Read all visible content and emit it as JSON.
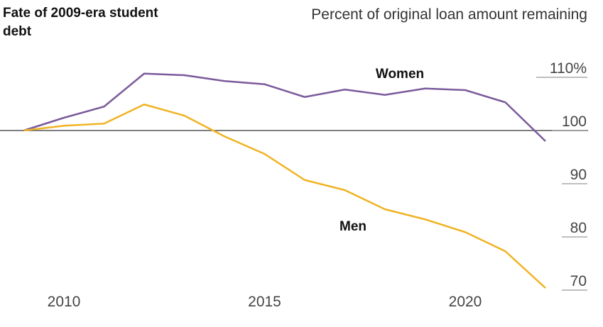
{
  "chart_data": {
    "type": "line",
    "title": "Fate of 2009-era student debt",
    "ylabel": "Percent of original loan amount remaining",
    "x": [
      2009,
      2010,
      2011,
      2012,
      2013,
      2014,
      2015,
      2016,
      2017,
      2018,
      2019,
      2020,
      2021,
      2022
    ],
    "series": [
      {
        "name": "Women",
        "color": "#7b5a9b",
        "values": [
          100,
          102.4,
          104.5,
          110.7,
          110.4,
          109.3,
          108.7,
          106.3,
          107.7,
          106.7,
          107.9,
          107.6,
          105.3,
          98
        ]
      },
      {
        "name": "Men",
        "color": "#f0b323",
        "values": [
          100,
          100.9,
          101.3,
          104.9,
          102.8,
          98.9,
          95.6,
          90.7,
          88.8,
          85.2,
          83.3,
          80.9,
          77.3,
          70.4
        ]
      }
    ],
    "xticks": [
      2010,
      2015,
      2020
    ],
    "xtick_labels": [
      "2010",
      "2015",
      "2020"
    ],
    "yticks": [
      110,
      100,
      90,
      80,
      70
    ],
    "ytick_labels": [
      "110%",
      "100",
      "90",
      "80",
      "70"
    ],
    "xlim": [
      2009,
      2022
    ],
    "ylim": [
      70,
      110
    ],
    "baseline": 100,
    "grid": false,
    "legend": "inline labels"
  }
}
